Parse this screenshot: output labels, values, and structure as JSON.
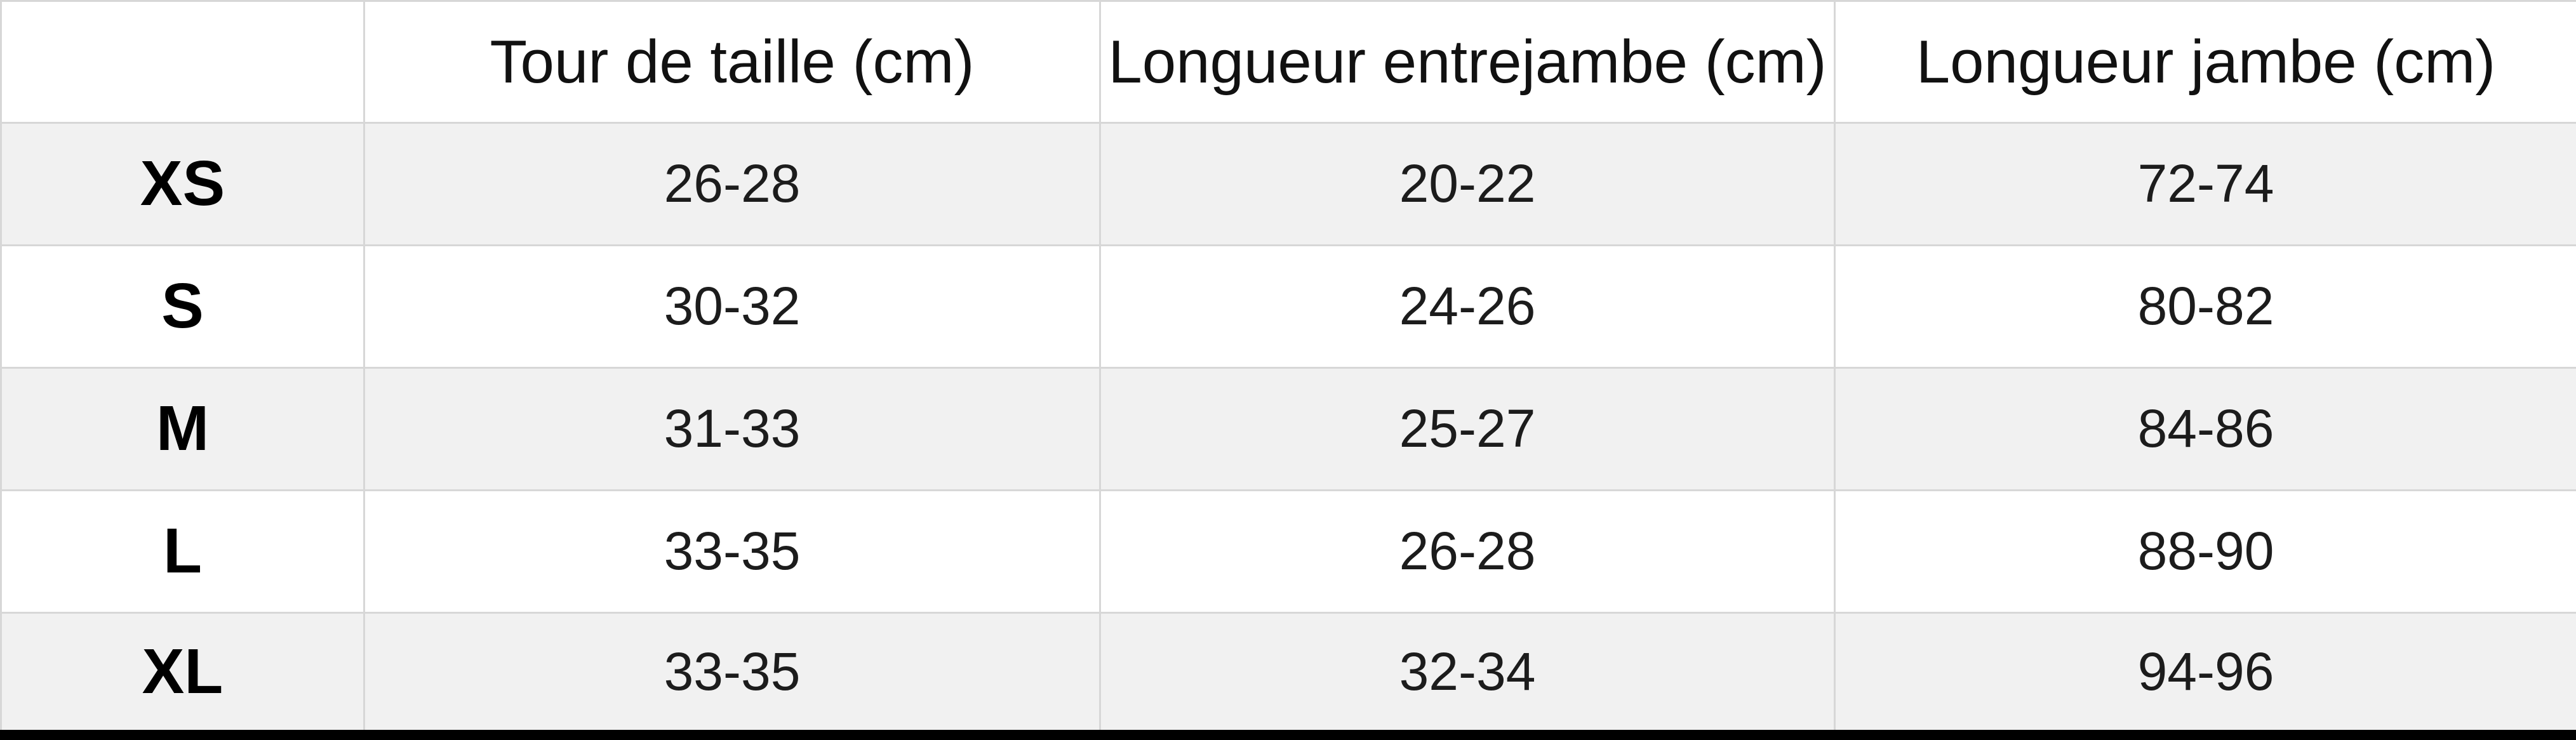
{
  "table": {
    "columns": [
      "",
      "Tour de taille (cm)",
      "Longueur entrejambe (cm)",
      "Longueur jambe (cm)"
    ],
    "rows": [
      {
        "size": "XS",
        "values": [
          "26-28",
          "20-22",
          "72-74"
        ]
      },
      {
        "size": "S",
        "values": [
          "30-32",
          "24-26",
          "80-82"
        ]
      },
      {
        "size": "M",
        "values": [
          "31-33",
          "25-27",
          "84-86"
        ]
      },
      {
        "size": "L",
        "values": [
          "33-35",
          "26-28",
          "88-90"
        ]
      },
      {
        "size": "XL",
        "values": [
          "33-35",
          "32-34",
          "94-96"
        ]
      }
    ]
  },
  "colors": {
    "stripe_row": "#f1f1f1",
    "grid_border": "#d7d7d7",
    "bottom_rule": "#000000",
    "header_text": "#111111",
    "value_text": "#1c1c1c"
  },
  "chart_data": {
    "type": "table",
    "title": "",
    "columns": [
      "",
      "Tour de taille (cm)",
      "Longueur entrejambe (cm)",
      "Longueur jambe (cm)"
    ],
    "rows": [
      [
        "XS",
        "26-28",
        "20-22",
        "72-74"
      ],
      [
        "S",
        "30-32",
        "24-26",
        "80-82"
      ],
      [
        "M",
        "31-33",
        "25-27",
        "84-86"
      ],
      [
        "L",
        "33-35",
        "26-28",
        "88-90"
      ],
      [
        "XL",
        "33-35",
        "32-34",
        "94-96"
      ]
    ],
    "layout": {
      "zebra_striping": true,
      "striped_rows": [
        "XS",
        "M",
        "XL"
      ],
      "grid": true
    }
  }
}
